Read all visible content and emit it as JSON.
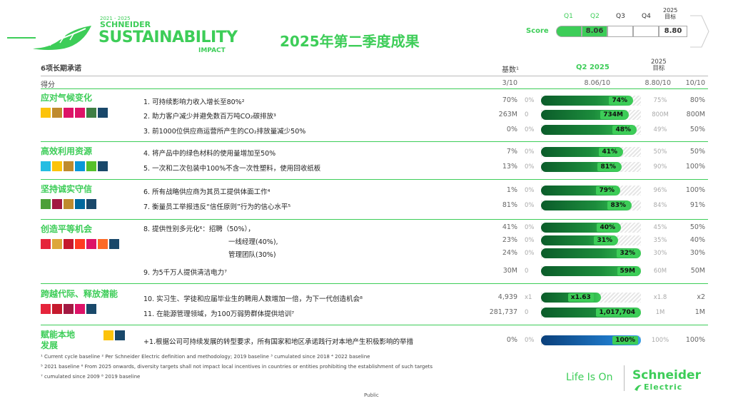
{
  "logo": {
    "years": "2021 - 2025",
    "line1": "SCHNEIDER",
    "line2": "SUSTAINABILITY",
    "line3": "IMPACT"
  },
  "title": "2025年第二季度成果",
  "score": {
    "label": "Score",
    "quarters": [
      "Q1",
      "Q2",
      "Q3",
      "Q4"
    ],
    "target_label": "2025\n目标",
    "q2_value": "8.06",
    "target_value": "8.80"
  },
  "table_header": {
    "commitments": "6项长期承诺",
    "baseline": "基数¹",
    "q2": "Q2 2025",
    "target": "2025\n目标",
    "score_row": "得分",
    "score_baseline": "3/10",
    "score_q2": "8.06/10",
    "score_target": "8.80/10",
    "score_max": "10/10"
  },
  "categories": [
    {
      "name": "应对气候变化",
      "sdg_colors": [
        "#fcc30b",
        "#bf8b2e",
        "#dd1367",
        "#dd1367",
        "#3f7e44",
        "#19486a"
      ]
    },
    {
      "name": "高效利用资源",
      "sdg_colors": [
        "#26bde2",
        "#fcc30b",
        "#bf8b2e",
        "#0a97d9",
        "#56c02b",
        "#19486a"
      ]
    },
    {
      "name": "坚持诚实守信",
      "sdg_colors": [
        "#4c9f38",
        "#a21942",
        "#bf8b2e",
        "#00689d",
        "#19486a"
      ]
    },
    {
      "name": "创造平等机会",
      "sdg_colors": [
        "#e5243b",
        "#dda63a",
        "#c5192d",
        "#ff3a21",
        "#dd1367",
        "#fd6925",
        "#19486a"
      ]
    },
    {
      "name": "跨越代际、释放潜能",
      "sdg_colors": [
        "#e5243b",
        "#c5192d",
        "#a21942",
        "#dd1367",
        "#19486a"
      ]
    },
    {
      "name": "赋能本地\n发展",
      "sdg_colors": [
        "#fcc30b",
        "#19486a"
      ]
    }
  ],
  "rows": [
    {
      "label": "1.   可持续影响力收入增长至80%²",
      "baseline": "70%",
      "zero": "0%",
      "bar_frac": 0.92,
      "value": "74%",
      "target": "75%",
      "max": "80%"
    },
    {
      "label": "2.   助力客户减少并避免数百万吨CO₂碳排放³",
      "baseline": "263M",
      "zero": "0",
      "bar_frac": 0.88,
      "value": "734M",
      "target": "800M",
      "max": "800M"
    },
    {
      "label": "3.   前1000位供应商运营所产生的CO₂排放量减少50%",
      "baseline": "0%",
      "zero": "0%",
      "bar_frac": 0.96,
      "value": "48%",
      "target": "49%",
      "max": "50%"
    },
    {
      "label": "4.   将产品中的绿色材料的使用量增加至50%",
      "baseline": "7%",
      "zero": "0%",
      "bar_frac": 0.82,
      "value": "41%",
      "target": "50%",
      "max": "50%"
    },
    {
      "label": "5.   一次和二次包装中100%不含一次性塑料，使用回收纸板",
      "baseline": "13%",
      "zero": "0%",
      "bar_frac": 0.81,
      "value": "81%",
      "target": "90%",
      "max": "100%"
    },
    {
      "label": "6.   所有战略供应商为其员工提供体面工作⁴",
      "baseline": "1%",
      "zero": "0%",
      "bar_frac": 0.79,
      "value": "79%",
      "target": "96%",
      "max": "100%"
    },
    {
      "label": "7.   衡量员工举报违反“信任原则”行为的信心水平⁵",
      "baseline": "81%",
      "zero": "0%",
      "bar_frac": 0.91,
      "value": "83%",
      "target": "84%",
      "max": "91%"
    },
    {
      "label": "8.   提供性别多元化⁶：招聘（50%），",
      "baseline": "41%",
      "zero": "0%",
      "bar_frac": 0.8,
      "value": "40%",
      "target": "45%",
      "max": "50%"
    },
    {
      "label": "一线经理(40%),",
      "baseline": "23%",
      "zero": "0%",
      "bar_frac": 0.77,
      "value": "31%",
      "target": "35%",
      "max": "40%"
    },
    {
      "label": "管理团队(30%)",
      "baseline": "24%",
      "zero": "0%",
      "bar_frac": 1.0,
      "value": "32%",
      "target": "30%",
      "max": "30%"
    },
    {
      "label": "9.     为5千万人提供清洁电力⁷",
      "baseline": "30M",
      "zero": "0",
      "bar_frac": 1.0,
      "value": "59M",
      "target": "60M",
      "max": "50M"
    },
    {
      "label": "10. 实习生、学徒和应届毕业生的聘用人数增加一倍，为下一代创造机会⁸",
      "baseline": "4,939",
      "zero": "x1",
      "bar_frac": 0.6,
      "value": "x1.63",
      "target": "x1.8",
      "max": "x2"
    },
    {
      "label": "11. 在能源管理领域，为100万弱势群体提供培训⁷",
      "baseline": "281,737",
      "zero": "0",
      "bar_frac": 1.0,
      "value": "1,017,704",
      "target": "1M",
      "max": "1M"
    },
    {
      "label": "+1.根据公司可持续发展的转型要求，所有国家和地区承诺践行对本地产生积极影响的举措",
      "baseline": "0%",
      "zero": "0%",
      "bar_frac": 1.0,
      "value": "100%",
      "target": "100%",
      "max": "100%"
    }
  ],
  "footnotes": [
    "¹ Current cycle baseline    ² Per Schneider Electric definition and methodology; 2019 baseline    ³ cumulated since 2018    ⁴ 2022 baseline",
    "⁵ 2021 baseline    ⁶ From 2025 onwards, diversity targets shall not impact local incentives in countries or entities prohibiting the establishment of such targets",
    "⁷ cumulated since 2009    ⁸ 2019 baseline"
  ],
  "public": "Public",
  "brand": {
    "tagline": "Life Is On",
    "name1": "Schneider",
    "name2": "Electric"
  },
  "colors": {
    "accent": "#3dcd58",
    "bar_dark": "#0b5c2a",
    "last_bar": "#1e78c8"
  }
}
